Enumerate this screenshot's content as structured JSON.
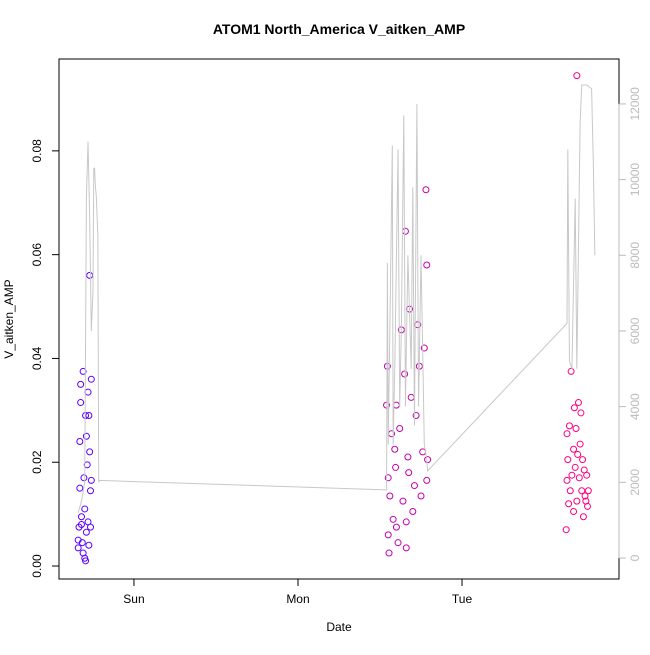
{
  "chart_data": {
    "type": "scatter",
    "title": "ATOM1 North_America V_aitken_AMP",
    "x_label": "Date",
    "y_label": "V_aitken_AMP",
    "xlim": [
      0.543,
      3.957
    ],
    "xticks": [
      {
        "value": 1,
        "label": "Sun"
      },
      {
        "value": 2,
        "label": "Mon"
      },
      {
        "value": 3,
        "label": "Tue"
      }
    ],
    "ylim": [
      -0.0025,
      0.0977
    ],
    "yticks": [
      {
        "value": 0,
        "label": "0.00"
      },
      {
        "value": 0.02,
        "label": "0.02"
      },
      {
        "value": 0.04,
        "label": "0.04"
      },
      {
        "value": 0.06,
        "label": "0.06"
      },
      {
        "value": 0.08,
        "label": "0.08"
      }
    ],
    "y2lim": [
      -555,
      13187
    ],
    "y2ticks": [
      0,
      2000,
      4000,
      6000,
      8000,
      10000,
      12000
    ],
    "y2_color": "#bbbbbb",
    "series": [
      {
        "type": "scatter",
        "color_range": [
          "#5a00ff",
          "#ff0080"
        ],
        "x": [
          0.66,
          0.66,
          0.665,
          0.67,
          0.67,
          0.675,
          0.675,
          0.68,
          0.685,
          0.69,
          0.69,
          0.695,
          0.7,
          0.7,
          0.705,
          0.71,
          0.71,
          0.715,
          0.72,
          0.72,
          0.725,
          0.725,
          0.73,
          0.73,
          0.735,
          0.735,
          0.74,
          0.74,
          0.705,
          0.68,
          2.54,
          2.545,
          2.55,
          2.55,
          2.555,
          2.56,
          2.57,
          2.58,
          2.59,
          2.595,
          2.6,
          2.61,
          2.62,
          2.63,
          2.64,
          2.65,
          2.655,
          2.66,
          2.67,
          2.675,
          2.68,
          2.69,
          2.7,
          2.71,
          2.72,
          2.73,
          2.74,
          2.75,
          2.76,
          2.78,
          2.785,
          2.77,
          2.79,
          2.785,
          2.6,
          2.66,
          3.635,
          3.64,
          3.64,
          3.645,
          3.65,
          3.655,
          3.66,
          3.665,
          3.67,
          3.7,
          3.68,
          3.685,
          3.69,
          3.695,
          3.7,
          3.705,
          3.71,
          3.715,
          3.72,
          3.725,
          3.73,
          3.735,
          3.74,
          3.745,
          3.75,
          3.755,
          3.76,
          3.765,
          3.77,
          3.68
        ],
        "values": [
          0.005,
          0.0035,
          0.0075,
          0.015,
          0.024,
          0.035,
          0.0315,
          0.008,
          0.0045,
          0.0025,
          0.0375,
          0.017,
          0.0015,
          0.011,
          0.029,
          0.0065,
          0.025,
          0.0195,
          0.0085,
          0.0335,
          0.029,
          0.004,
          0.056,
          0.022,
          0.0145,
          0.0075,
          0.036,
          0.0165,
          0.001,
          0.0095,
          0.031,
          0.0385,
          0.006,
          0.017,
          0.0025,
          0.0135,
          0.0255,
          0.009,
          0.0225,
          0.019,
          0.031,
          0.0045,
          0.0265,
          0.0455,
          0.0125,
          0.037,
          0.0645,
          0.0035,
          0.021,
          0.018,
          0.0495,
          0.0325,
          0.0105,
          0.0155,
          0.029,
          0.0465,
          0.0385,
          0.0135,
          0.022,
          0.0725,
          0.058,
          0.042,
          0.0205,
          0.0165,
          0.0075,
          0.0085,
          0.007,
          0.0165,
          0.0255,
          0.0205,
          0.012,
          0.027,
          0.0145,
          0.0375,
          0.0175,
          0.0945,
          0.0225,
          0.0305,
          0.019,
          0.0265,
          0.0125,
          0.0215,
          0.0315,
          0.017,
          0.0235,
          0.0295,
          0.0145,
          0.0205,
          0.0095,
          0.0185,
          0.0135,
          0.0125,
          0.0175,
          0.0115,
          0.0145,
          0.0105
        ]
      },
      {
        "type": "line",
        "axis": "y2",
        "color": "#c8c8c8",
        "x": [
          0.66,
          0.68,
          0.7,
          0.71,
          0.72,
          0.73,
          0.74,
          0.75,
          0.755,
          0.76,
          0.765,
          0.77,
          0.78,
          0.785,
          0.79,
          2.54,
          2.545,
          2.55,
          2.56,
          2.575,
          2.58,
          2.59,
          2.61,
          2.62,
          2.63,
          2.645,
          2.655,
          2.67,
          2.69,
          2.7,
          2.71,
          2.725,
          2.735,
          2.75,
          2.77,
          2.785,
          2.79,
          3.64,
          3.645,
          3.655,
          3.67,
          3.69,
          3.7,
          3.72,
          3.73,
          3.76,
          3.79,
          3.8,
          3.81
        ],
        "values": [
          1200,
          1500,
          2000,
          9500,
          11000,
          9000,
          6000,
          7000,
          10300,
          10300,
          9800,
          9600,
          8500,
          2000,
          2050,
          1800,
          7800,
          3000,
          6000,
          10900,
          3000,
          5000,
          10800,
          4000,
          6000,
          11700,
          4000,
          8000,
          5000,
          9800,
          3500,
          12000,
          4000,
          8000,
          3000,
          2600,
          2300,
          6200,
          10800,
          5200,
          5000,
          9500,
          5000,
          11500,
          12500,
          12500,
          12400,
          10500,
          8000
        ]
      }
    ]
  }
}
